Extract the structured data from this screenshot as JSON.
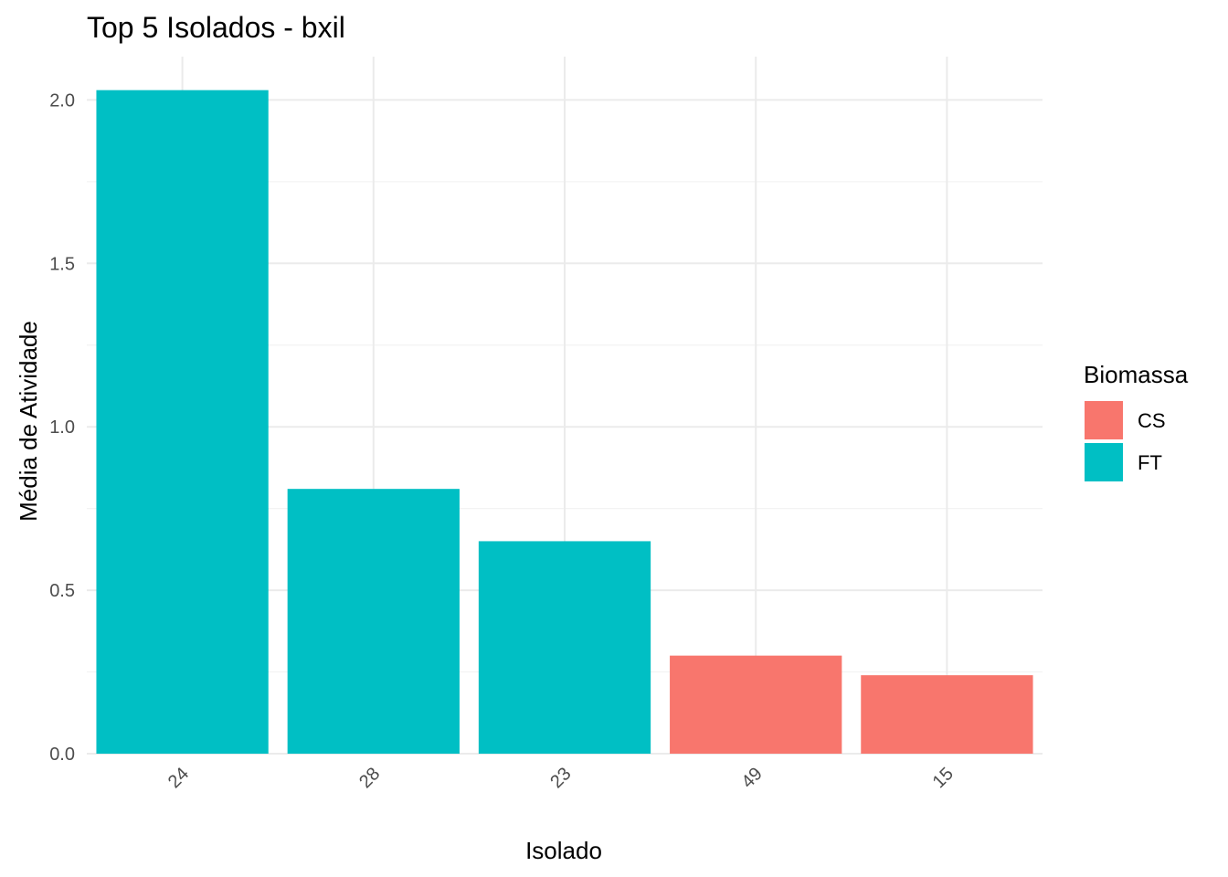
{
  "chart_data": {
    "type": "bar",
    "title": "Top 5 Isolados - bxil",
    "xlabel": "Isolado",
    "ylabel": "Média de Atividade",
    "categories": [
      "24",
      "28",
      "23",
      "49",
      "15"
    ],
    "values": [
      2.03,
      0.81,
      0.65,
      0.3,
      0.24
    ],
    "groups": [
      "FT",
      "FT",
      "FT",
      "CS",
      "CS"
    ],
    "ylim": [
      0,
      2.03
    ],
    "yticks": [
      0.0,
      0.5,
      1.0,
      1.5,
      2.0
    ],
    "ytick_labels": [
      "0.0",
      "0.5",
      "1.0",
      "1.5",
      "2.0"
    ],
    "grid": true,
    "legend": {
      "title": "Biomassa",
      "placement": "right",
      "entries": [
        {
          "label": "CS",
          "color": "#F8766D"
        },
        {
          "label": "FT",
          "color": "#00BFC4"
        }
      ]
    }
  }
}
